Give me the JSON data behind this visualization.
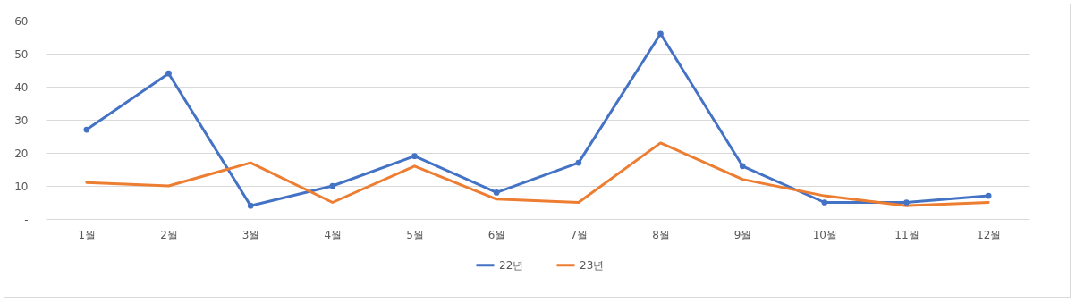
{
  "chart_data": {
    "type": "line",
    "categories": [
      "1월",
      "2월",
      "3월",
      "4월",
      "5월",
      "6월",
      "7월",
      "8월",
      "9월",
      "10월",
      "11월",
      "12월"
    ],
    "series": [
      {
        "name": "22년",
        "color": "#4472c4",
        "marker": "circle",
        "values": [
          27,
          44,
          4,
          10,
          19,
          8,
          17,
          56,
          16,
          5,
          5,
          7
        ]
      },
      {
        "name": "23년",
        "color": "#ed7d31",
        "marker": "none",
        "values": [
          11,
          10,
          17,
          5,
          16,
          6,
          5,
          23,
          12,
          7,
          4,
          5
        ]
      }
    ],
    "ylim": [
      0,
      60
    ],
    "yticks": [
      {
        "value": 0,
        "label": "-"
      },
      10,
      20,
      30,
      40,
      50,
      60
    ],
    "grid": "y",
    "legend": "bottom",
    "line_style": "solid"
  }
}
